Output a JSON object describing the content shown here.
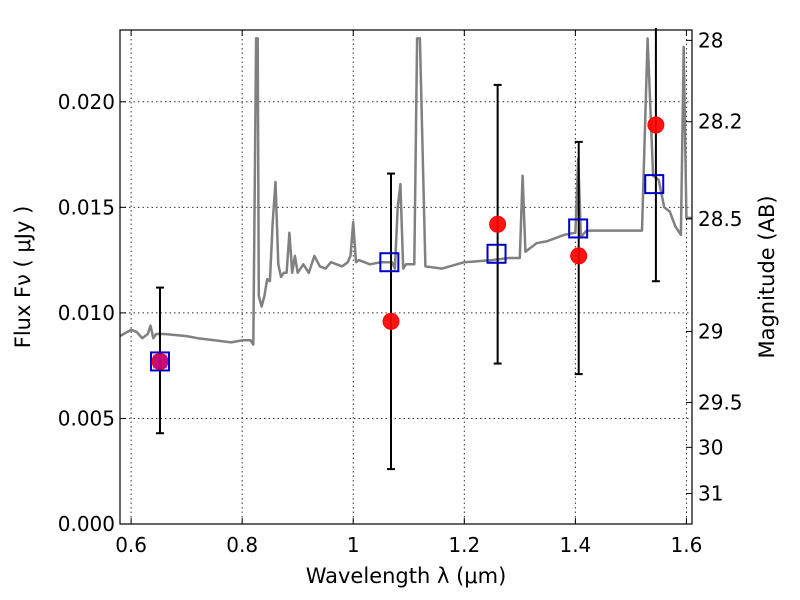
{
  "chart_data": {
    "type": "scatter",
    "xlabel": "Wavelength  λ (μm)",
    "ylabel": "Flux  Fν  ( μJy )",
    "ylabel_right": "Magnitude (AB)",
    "xlim": [
      0.58,
      1.61
    ],
    "ylim": [
      0.0,
      0.0234
    ],
    "grid": true,
    "x_ticks": [
      {
        "value": 0.6,
        "label": "0.6"
      },
      {
        "value": 0.8,
        "label": "0.8"
      },
      {
        "value": 1.0,
        "label": "1"
      },
      {
        "value": 1.2,
        "label": "1.2"
      },
      {
        "value": 1.4,
        "label": "1.4"
      },
      {
        "value": 1.6,
        "label": "1.6"
      }
    ],
    "y_ticks": [
      {
        "value": 0.0,
        "label": "0.000"
      },
      {
        "value": 0.005,
        "label": "0.005"
      },
      {
        "value": 0.01,
        "label": "0.010"
      },
      {
        "value": 0.015,
        "label": "0.015"
      },
      {
        "value": 0.02,
        "label": "0.020"
      }
    ],
    "y_right_ticks": [
      {
        "value": 28,
        "label": "28"
      },
      {
        "value": 28.2,
        "label": "28.2"
      },
      {
        "value": 28.5,
        "label": "28.5"
      },
      {
        "value": 29,
        "label": "29"
      },
      {
        "value": 29.5,
        "label": "29.5"
      },
      {
        "value": 30,
        "label": "30"
      },
      {
        "value": 31,
        "label": "31"
      }
    ],
    "series": [
      {
        "kind": "line",
        "color": "#808080",
        "x": [
          0.58,
          0.6,
          0.61,
          0.62,
          0.63,
          0.635,
          0.64,
          0.645,
          0.66,
          0.7,
          0.72,
          0.75,
          0.78,
          0.8,
          0.815,
          0.82,
          0.825,
          0.828,
          0.83,
          0.835,
          0.84,
          0.845,
          0.85,
          0.855,
          0.86,
          0.865,
          0.87,
          0.875,
          0.88,
          0.885,
          0.89,
          0.895,
          0.9,
          0.91,
          0.92,
          0.93,
          0.94,
          0.95,
          0.96,
          0.97,
          0.98,
          0.99,
          0.995,
          1.0,
          1.005,
          1.01,
          1.03,
          1.05,
          1.06,
          1.07,
          1.075,
          1.08,
          1.085,
          1.09,
          1.095,
          1.1,
          1.11,
          1.115,
          1.12,
          1.13,
          1.16,
          1.2,
          1.25,
          1.28,
          1.3,
          1.305,
          1.31,
          1.33,
          1.35,
          1.38,
          1.4,
          1.405,
          1.41,
          1.42,
          1.45,
          1.5,
          1.52,
          1.53,
          1.54,
          1.55,
          1.56,
          1.57,
          1.58,
          1.59,
          1.595,
          1.6,
          1.61
        ],
        "y": [
          0.0089,
          0.0092,
          0.0091,
          0.0088,
          0.009,
          0.0094,
          0.0088,
          0.009,
          0.009,
          0.0089,
          0.0088,
          0.0087,
          0.0086,
          0.0087,
          0.0087,
          0.0085,
          0.023,
          0.023,
          0.0108,
          0.0103,
          0.0108,
          0.0116,
          0.0115,
          0.0143,
          0.0162,
          0.0123,
          0.0117,
          0.0119,
          0.0119,
          0.0138,
          0.0119,
          0.0127,
          0.0119,
          0.0123,
          0.0119,
          0.0127,
          0.0122,
          0.0121,
          0.0124,
          0.0123,
          0.0122,
          0.0124,
          0.0127,
          0.0143,
          0.0124,
          0.0125,
          0.0123,
          0.0124,
          0.0124,
          0.0124,
          0.0121,
          0.015,
          0.0161,
          0.0121,
          0.0123,
          0.0123,
          0.0123,
          0.023,
          0.023,
          0.0122,
          0.0121,
          0.0124,
          0.0125,
          0.0126,
          0.0126,
          0.0165,
          0.0129,
          0.0133,
          0.0134,
          0.0137,
          0.0138,
          0.0173,
          0.0136,
          0.0139,
          0.0139,
          0.0139,
          0.0139,
          0.023,
          0.0165,
          0.0163,
          0.015,
          0.0148,
          0.0141,
          0.0137,
          0.0226,
          0.0145,
          0.0145
        ]
      },
      {
        "kind": "errorbar",
        "color": "#000000",
        "x": [
          0.652,
          1.068,
          1.26,
          1.406,
          1.545
        ],
        "low": [
          0.0043,
          0.0026,
          0.0076,
          0.0071,
          0.0115
        ],
        "high": [
          0.0112,
          0.0166,
          0.0208,
          0.0181,
          0.0235
        ]
      },
      {
        "kind": "points",
        "marker": "circle",
        "color": "#ff0000",
        "x": [
          0.652,
          1.068,
          1.26,
          1.406,
          1.545
        ],
        "y": [
          0.0077,
          0.0096,
          0.0142,
          0.0127,
          0.0189
        ]
      },
      {
        "kind": "points",
        "marker": "square",
        "color": "#0000cc",
        "x": [
          0.652,
          1.065,
          1.258,
          1.405,
          1.542
        ],
        "y": [
          0.0077,
          0.0124,
          0.0128,
          0.014,
          0.0161
        ]
      }
    ]
  }
}
